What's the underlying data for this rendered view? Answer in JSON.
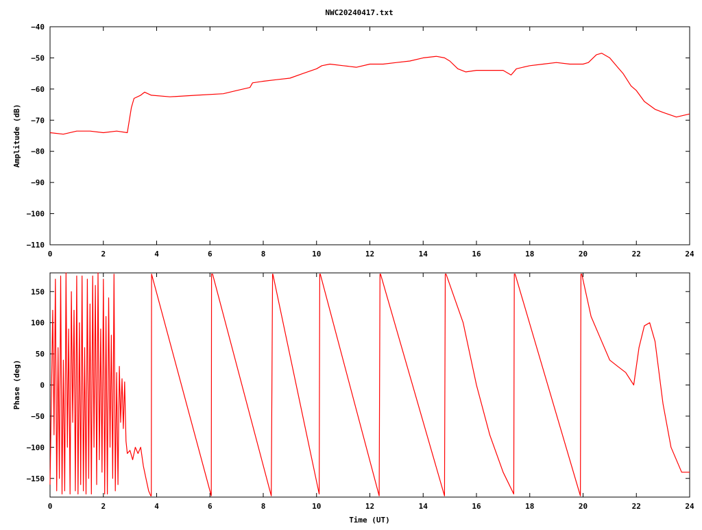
{
  "title": "NWC20240417.txt",
  "colors": {
    "trace": "#ff0000",
    "axis": "#000000",
    "background": "#ffffff"
  },
  "chart_data": [
    {
      "type": "line",
      "ylabel": "Amplitude (dB)",
      "xlabel": "",
      "xlim": [
        0,
        24
      ],
      "ylim": [
        -110,
        -40
      ],
      "xticks": [
        0,
        2,
        4,
        6,
        8,
        10,
        12,
        14,
        16,
        18,
        20,
        22,
        24
      ],
      "yticks": [
        -110,
        -100,
        -90,
        -80,
        -70,
        -60,
        -50,
        -40
      ],
      "xtick_labels": [
        "0",
        "2",
        "4",
        "6",
        "8",
        "10",
        "12",
        "14",
        "16",
        "18",
        "20",
        "22",
        "24"
      ],
      "ytick_labels": [
        "−110",
        "−100",
        "−90",
        "−80",
        "−70",
        "−60",
        "−50",
        "−40"
      ],
      "grid": false,
      "series": [
        {
          "x": [
            0,
            0.5,
            1.0,
            1.5,
            2.0,
            2.5,
            2.9,
            3.05,
            3.15,
            3.4,
            3.55,
            3.8,
            4.5,
            5.5,
            6.5,
            7.0,
            7.5,
            7.6,
            8.0,
            8.5,
            9.0,
            9.5,
            10.0,
            10.2,
            10.5,
            11.0,
            11.5,
            12.0,
            12.5,
            13.0,
            13.5,
            14.0,
            14.5,
            14.8,
            15.0,
            15.3,
            15.6,
            16.0,
            16.5,
            17.0,
            17.3,
            17.5,
            18.0,
            18.5,
            19.0,
            19.5,
            20.0,
            20.2,
            20.5,
            20.7,
            21.0,
            21.3,
            21.5,
            21.8,
            22.0,
            22.3,
            22.7,
            23.0,
            23.5,
            24.0
          ],
          "y": [
            -74,
            -74.5,
            -73.5,
            -73.5,
            -74,
            -73.5,
            -74,
            -66,
            -63,
            -62,
            -61,
            -62,
            -62.5,
            -62,
            -61.5,
            -60.5,
            -59.5,
            -58,
            -57.5,
            -57,
            -56.5,
            -55,
            -53.5,
            -52.5,
            -52,
            -52.5,
            -53,
            -52,
            -52,
            -51.5,
            -51,
            -50,
            -49.5,
            -50,
            -51,
            -53.5,
            -54.5,
            -54,
            -54,
            -54,
            -55.5,
            -53.5,
            -52.5,
            -52,
            -51.5,
            -52,
            -52,
            -51.5,
            -49,
            -48.5,
            -50,
            -53,
            -55,
            -59,
            -60.5,
            -64,
            -66.5,
            -67.5,
            -69,
            -68
          ]
        }
      ]
    },
    {
      "type": "line",
      "ylabel": "Phase (deg)",
      "xlabel": "Time (UT)",
      "xlim": [
        0,
        24
      ],
      "ylim": [
        -180,
        180
      ],
      "xticks": [
        0,
        2,
        4,
        6,
        8,
        10,
        12,
        14,
        16,
        18,
        20,
        22,
        24
      ],
      "yticks": [
        -150,
        -100,
        -50,
        0,
        50,
        100,
        150
      ],
      "xtick_labels": [
        "0",
        "2",
        "4",
        "6",
        "8",
        "10",
        "12",
        "14",
        "16",
        "18",
        "20",
        "22",
        "24"
      ],
      "ytick_labels": [
        "−150",
        "−100",
        "−50",
        "0",
        "50",
        "100",
        "150"
      ],
      "grid": false,
      "series": [
        {
          "x": [
            0.0,
            0.1,
            0.15,
            0.2,
            0.25,
            0.3,
            0.35,
            0.4,
            0.45,
            0.5,
            0.55,
            0.6,
            0.65,
            0.7,
            0.75,
            0.8,
            0.85,
            0.9,
            0.95,
            1.0,
            1.05,
            1.1,
            1.15,
            1.2,
            1.25,
            1.3,
            1.35,
            1.4,
            1.45,
            1.5,
            1.55,
            1.6,
            1.65,
            1.7,
            1.75,
            1.8,
            1.85,
            1.9,
            1.95,
            2.0,
            2.05,
            2.1,
            2.15,
            2.2,
            2.25,
            2.3,
            2.35,
            2.4,
            2.45,
            2.5,
            2.55,
            2.6,
            2.65,
            2.7,
            2.75,
            2.8,
            2.85,
            2.9,
            3.0,
            3.1,
            3.2,
            3.3,
            3.4,
            3.5,
            3.6,
            3.7,
            3.78,
            3.8,
            3.81,
            6.05,
            6.06,
            6.1,
            8.3,
            8.35,
            8.36,
            10.1,
            10.12,
            10.14,
            12.35,
            12.38,
            12.4,
            14.8,
            14.83,
            14.86,
            15.5,
            16.0,
            16.5,
            17.0,
            17.4,
            17.42,
            17.45,
            19.9,
            19.92,
            19.95,
            20.3,
            20.6,
            21.0,
            21.3,
            21.6,
            21.9,
            22.1,
            22.3,
            22.5,
            22.7,
            23.0,
            23.3,
            23.7,
            24.0
          ],
          "y": [
            -160,
            120,
            -80,
            170,
            -170,
            60,
            -150,
            175,
            -175,
            40,
            -170,
            180,
            -100,
            90,
            -175,
            150,
            -60,
            120,
            -170,
            175,
            -175,
            100,
            -160,
            175,
            -170,
            60,
            -175,
            170,
            -150,
            130,
            -175,
            175,
            -100,
            160,
            -160,
            180,
            -120,
            90,
            -140,
            170,
            -175,
            110,
            -175,
            140,
            -100,
            80,
            -150,
            178,
            -170,
            20,
            -160,
            30,
            -60,
            10,
            -70,
            5,
            -90,
            -110,
            -105,
            -120,
            -100,
            -110,
            -100,
            -130,
            -150,
            -170,
            -178,
            -178,
            178,
            -178,
            178,
            178,
            -178,
            178,
            178,
            -175,
            178,
            178,
            -178,
            178,
            178,
            -178,
            178,
            178,
            100,
            0,
            -80,
            -140,
            -175,
            178,
            178,
            -178,
            178,
            178,
            110,
            80,
            40,
            30,
            20,
            0,
            60,
            95,
            100,
            70,
            -30,
            -100,
            -140,
            -140
          ]
        }
      ]
    }
  ]
}
